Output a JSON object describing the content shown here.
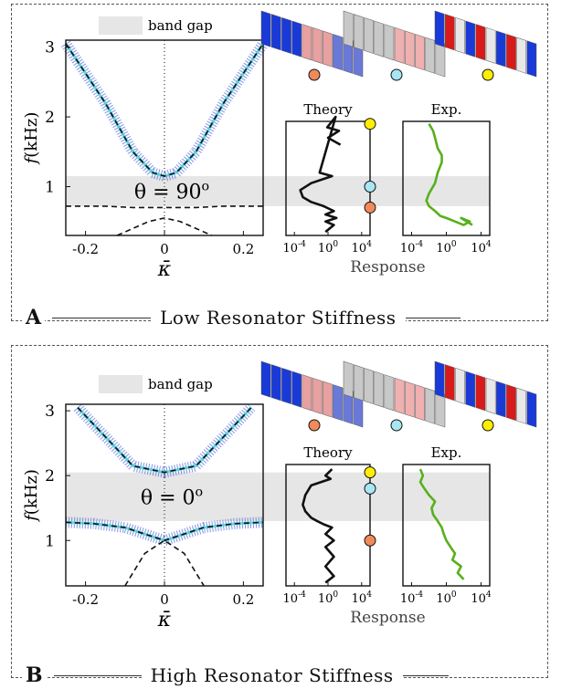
{
  "legend": {
    "band_gap_label": "band gap"
  },
  "colors": {
    "gap": "#e6e6e6",
    "theory": "#111111",
    "exp": "#58b01c",
    "orange": "#f08a5a",
    "cyan": "#a8e6f4",
    "yellow": "#ffee00",
    "field_blue": "#1a3ad8",
    "field_red": "#d81a1a"
  },
  "labels": {
    "theory_title": "Theory",
    "exp_title": "Exp.",
    "response": "Response",
    "kappa": "κ̄",
    "freq_f": "f",
    "freq_unit": "(kHz)"
  },
  "panels": [
    {
      "letter": "A",
      "title": "Low Resonator Stiffness",
      "theta_label": "θ = 90",
      "theta_sup": "o",
      "gap": [
        0.72,
        1.15
      ],
      "markers": [
        {
          "f": 0.7,
          "color": "orange"
        },
        {
          "f": 1.0,
          "color": "cyan"
        },
        {
          "f": 1.9,
          "color": "yellow"
        }
      ]
    },
    {
      "letter": "B",
      "title": "High Resonator Stiffness",
      "theta_label": "θ = 0",
      "theta_sup": "o",
      "gap": [
        1.3,
        2.05
      ],
      "markers": [
        {
          "f": 1.0,
          "color": "orange"
        },
        {
          "f": 1.8,
          "color": "cyan"
        },
        {
          "f": 2.05,
          "color": "yellow"
        }
      ]
    }
  ],
  "chart_data": [
    {
      "type": "line",
      "title": "",
      "xlabel": "κ̄",
      "ylabel": "f (kHz)",
      "xlim": [
        -0.25,
        0.25
      ],
      "ylim": [
        0.3,
        3.1
      ],
      "x_ticks": [
        "-0.2",
        "0",
        "0.2"
      ],
      "y_ticks": [
        "1",
        "2",
        "3"
      ],
      "band_gap": [
        0.72,
        1.15
      ],
      "annotation": "θ = 90°",
      "series": [
        {
          "x": [
            -0.25,
            -0.15,
            -0.08,
            -0.03,
            0.0,
            0.03,
            0.08,
            0.15,
            0.25
          ],
          "y": [
            3.05,
            2.2,
            1.5,
            1.2,
            1.15,
            1.2,
            1.5,
            2.2,
            3.05
          ]
        },
        {
          "x": [
            -0.25,
            -0.15,
            -0.08,
            0.0,
            0.08,
            0.15,
            0.25
          ],
          "y": [
            0.72,
            0.72,
            0.7,
            0.7,
            0.7,
            0.72,
            0.72
          ]
        },
        {
          "x": [
            -0.12,
            -0.08,
            -0.04,
            0.0,
            0.04,
            0.08,
            0.12
          ],
          "y": [
            0.3,
            0.4,
            0.5,
            0.55,
            0.5,
            0.4,
            0.3
          ]
        }
      ]
    },
    {
      "type": "line",
      "title": "Theory",
      "xlabel": "Response",
      "x_scale": "log",
      "x_ticks": [
        "10^-4",
        "10^0",
        "10^4"
      ],
      "ylim": [
        0.3,
        3.1
      ],
      "series": [
        {
          "x": [
            30,
            1,
            20,
            0.8,
            8,
            0.1,
            3,
            0.01,
            0.0005,
            0.001,
            0.01,
            0.3,
            5,
            0.5,
            10,
            0.5,
            5,
            0.5
          ],
          "y": [
            1.6,
            1.7,
            1.8,
            1.85,
            2.0,
            1.2,
            1.15,
            1.05,
            0.95,
            0.85,
            0.78,
            0.72,
            0.65,
            0.6,
            0.55,
            0.5,
            0.45,
            0.35
          ]
        }
      ]
    },
    {
      "type": "line",
      "title": "Exp.",
      "xlabel": "Response",
      "x_scale": "log",
      "x_ticks": [
        "10^-4",
        "10^0",
        "10^4"
      ],
      "ylim": [
        0.3,
        3.1
      ],
      "series": [
        {
          "x": [
            0.01,
            0.03,
            0.05,
            0.1,
            0.3,
            0.3,
            0.1,
            0.05,
            0.01,
            0.005,
            0.01,
            0.05,
            0.2,
            1,
            10,
            100,
            500,
            50,
            1000
          ],
          "y": [
            1.9,
            1.8,
            1.7,
            1.55,
            1.45,
            1.35,
            1.2,
            1.05,
            0.9,
            0.8,
            0.72,
            0.65,
            0.58,
            0.55,
            0.5,
            0.45,
            0.5,
            0.55,
            0.45
          ]
        }
      ]
    },
    {
      "type": "line",
      "title": "",
      "xlabel": "κ̄",
      "ylabel": "f (kHz)",
      "xlim": [
        -0.25,
        0.25
      ],
      "ylim": [
        0.3,
        3.1
      ],
      "x_ticks": [
        "-0.2",
        "0",
        "0.2"
      ],
      "y_ticks": [
        "1",
        "2",
        "3"
      ],
      "band_gap": [
        1.3,
        2.05
      ],
      "annotation": "θ = 0°",
      "series": [
        {
          "x": [
            -0.22,
            -0.15,
            -0.08,
            0.0,
            0.08,
            0.15,
            0.22
          ],
          "y": [
            3.05,
            2.6,
            2.15,
            2.05,
            2.15,
            2.6,
            3.05
          ]
        },
        {
          "x": [
            -0.25,
            -0.18,
            -0.1,
            0.0,
            0.1,
            0.18,
            0.25
          ],
          "y": [
            1.28,
            1.26,
            1.2,
            1.0,
            1.2,
            1.26,
            1.28
          ]
        },
        {
          "x": [
            -0.1,
            -0.05,
            0.0,
            0.05,
            0.1
          ],
          "y": [
            0.3,
            0.8,
            1.0,
            0.8,
            0.3
          ]
        }
      ]
    },
    {
      "type": "line",
      "title": "Theory",
      "xlabel": "Response",
      "x_scale": "log",
      "x_ticks": [
        "10^-4",
        "10^0",
        "10^4"
      ],
      "ylim": [
        0.3,
        3.1
      ],
      "series": [
        {
          "x": [
            3,
            0.5,
            2,
            0.01,
            0.002,
            0.001,
            0.002,
            0.01,
            0.05,
            0.3,
            3,
            0.5,
            5,
            0.5,
            5,
            0.5,
            5,
            0.5
          ],
          "y": [
            2.1,
            2.0,
            1.95,
            1.85,
            1.7,
            1.55,
            1.45,
            1.35,
            1.3,
            1.25,
            1.2,
            1.1,
            1.0,
            0.9,
            0.75,
            0.6,
            0.45,
            0.35
          ]
        }
      ]
    },
    {
      "type": "line",
      "title": "Exp.",
      "xlabel": "Response",
      "x_scale": "log",
      "x_ticks": [
        "10^-4",
        "10^0",
        "10^4"
      ],
      "ylim": [
        0.3,
        3.1
      ],
      "series": [
        {
          "x": [
            0.001,
            0.002,
            0.001,
            0.003,
            0.01,
            0.05,
            0.02,
            0.03,
            0.1,
            0.3,
            0.5,
            1,
            3,
            10,
            5,
            50,
            20,
            100
          ],
          "y": [
            2.1,
            2.0,
            1.9,
            1.8,
            1.7,
            1.6,
            1.5,
            1.4,
            1.3,
            1.2,
            1.1,
            1.0,
            0.9,
            0.8,
            0.7,
            0.6,
            0.5,
            0.4
          ]
        }
      ]
    }
  ]
}
